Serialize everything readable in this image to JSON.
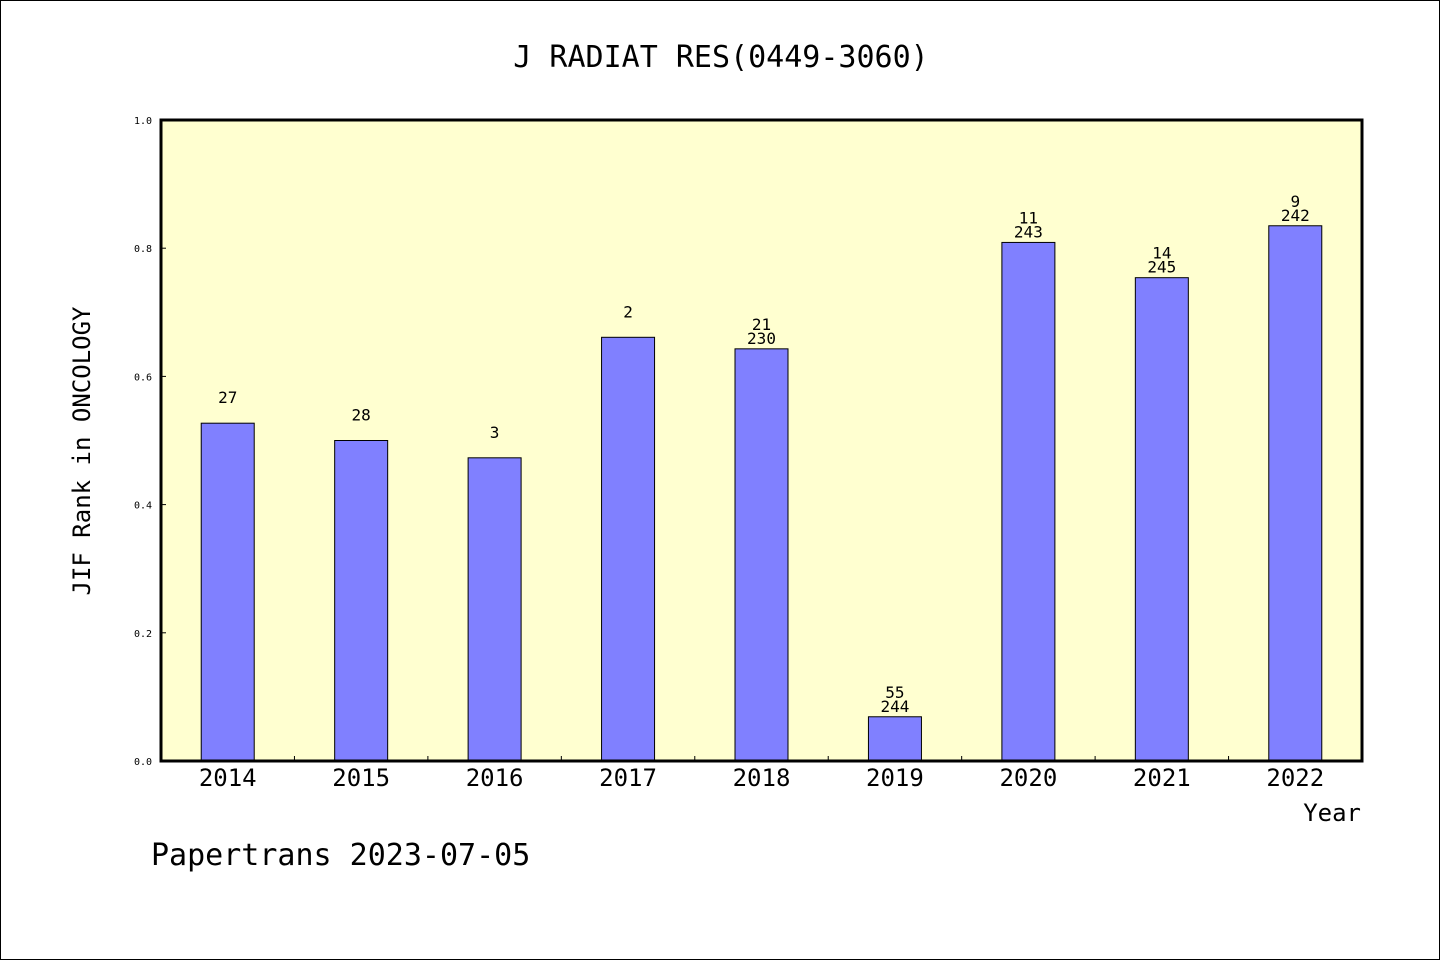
{
  "chart_data": {
    "type": "bar",
    "title": "J RADIAT RES(0449-3060)",
    "xlabel": "Year",
    "ylabel": "JIF Rank in ONCOLOGY",
    "ylim": [
      0,
      1
    ],
    "yticks": [
      "0.0",
      "0.2",
      "0.4",
      "0.6",
      "0.8",
      "1.0"
    ],
    "categories": [
      "2014",
      "2015",
      "2016",
      "2017",
      "2018",
      "2019",
      "2020",
      "2021",
      "2022"
    ],
    "values": [
      0.527,
      0.5,
      0.473,
      0.661,
      0.643,
      0.069,
      0.809,
      0.754,
      0.835
    ],
    "rank_labels": [
      "27",
      "28",
      "3",
      "2",
      "21",
      "55",
      "11",
      "14",
      "9"
    ],
    "total_labels": [
      "",
      "",
      "",
      "",
      "230",
      "244",
      "243",
      "245",
      "242"
    ],
    "bar_color": "#8080ff",
    "plot_background": "#ffffd0",
    "grid": false,
    "legend": "none"
  },
  "footer": "Papertrans 2023-07-05"
}
